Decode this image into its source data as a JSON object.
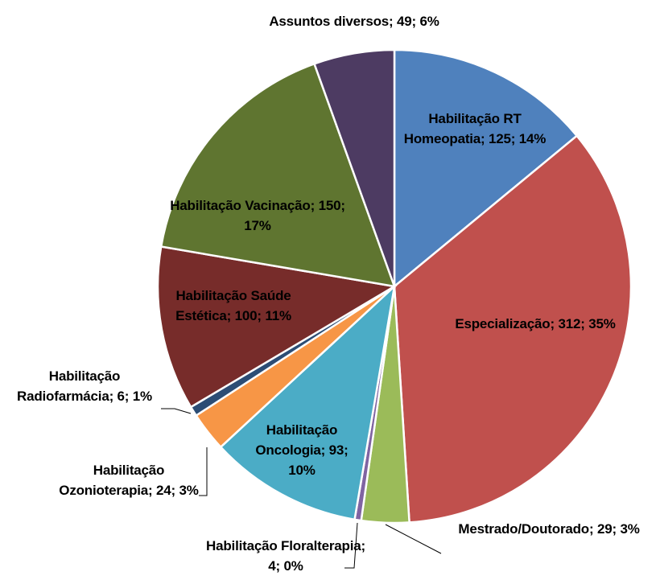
{
  "chart_data": {
    "type": "pie",
    "labels": [
      "Habilitação RT Homeopatia; 125; 14%",
      "Especialização; 312; 35%",
      "Mestrado/Doutorado; 29; 3%",
      "Habilitação Floralterapia; 4; 0%",
      "Habilitação Oncologia; 93; 10%",
      "Habilitação Ozonioterapia; 24; 3%",
      "Habilitação Radiofarmácia; 6; 1%",
      "Habilitação Saúde Estética; 100; 11%",
      "Habilitação Vacinação; 150; 17%",
      "Assuntos diversos; 49; 6%"
    ],
    "values": [
      125,
      312,
      29,
      4,
      93,
      24,
      6,
      100,
      150,
      49
    ],
    "colors": [
      "#4F81BD",
      "#C0504D",
      "#9BBB59",
      "#8064A2",
      "#4BACC6",
      "#F79646",
      "#2C4D75",
      "#772C2A",
      "#5F7530",
      "#4D3B62"
    ]
  }
}
